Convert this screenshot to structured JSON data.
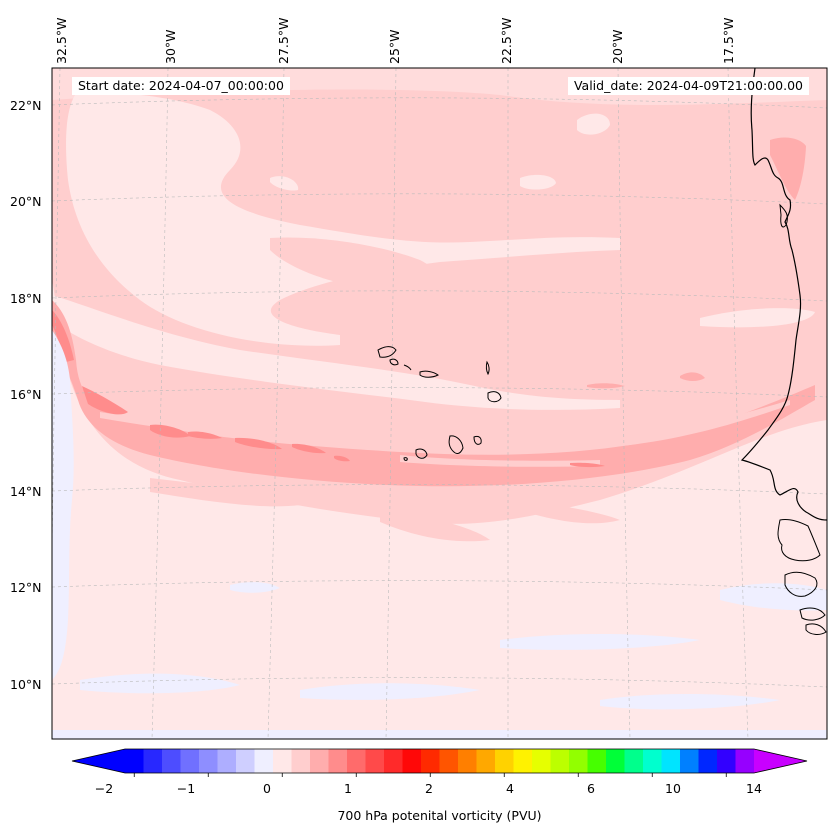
{
  "map": {
    "title_start": "Start date: 2024-04-07_00:00:00",
    "title_valid": "Valid_date: 2024-04-09T21:00:00.00",
    "lon_labels": [
      "32.5°W",
      "30°W",
      "27.5°W",
      "25°W",
      "22.5°W",
      "20°W",
      "17.5°W"
    ],
    "lat_labels": [
      "22°N",
      "20°N",
      "18°N",
      "16°N",
      "14°N",
      "12°N",
      "10°N"
    ],
    "field": "700 hPa potential vorticity",
    "region": "Cabo Verde / West African coast"
  },
  "colorbar": {
    "label": "700 hPa potenital vorticity (PVU)",
    "tick_labels": [
      "−2",
      "−1",
      "0",
      "1",
      "2",
      "4",
      "6",
      "10",
      "14"
    ],
    "levels": [
      -2,
      -1.75,
      -1.5,
      -1.25,
      -1,
      -0.75,
      -0.5,
      -0.25,
      0,
      0.25,
      0.5,
      0.75,
      1,
      1.25,
      1.5,
      1.75,
      2,
      2.5,
      3,
      3.5,
      4,
      4.5,
      5,
      5.5,
      6,
      7,
      8,
      9,
      10,
      11,
      12,
      13,
      14,
      15
    ],
    "colors": [
      "#0000ff",
      "#2828ff",
      "#4d4dff",
      "#7070ff",
      "#8e8eff",
      "#aeaeff",
      "#cfcfff",
      "#efefff",
      "#ffe8e8",
      "#ffcece",
      "#ffadad",
      "#ff8c8c",
      "#ff6b6b",
      "#ff4a4a",
      "#ff2a2a",
      "#ff0808",
      "#ff2a00",
      "#ff5500",
      "#ff7f00",
      "#ffa800",
      "#ffd200",
      "#fff200",
      "#e6ff00",
      "#bcff00",
      "#92ff00",
      "#46ff00",
      "#00ff38",
      "#00ff8c",
      "#00ffce",
      "#00e4ff",
      "#0080ff",
      "#0027ff",
      "#3200ff",
      "#9600ff"
    ],
    "extend_low_color": "#0000ff",
    "extend_high_color": "#c800ff"
  }
}
